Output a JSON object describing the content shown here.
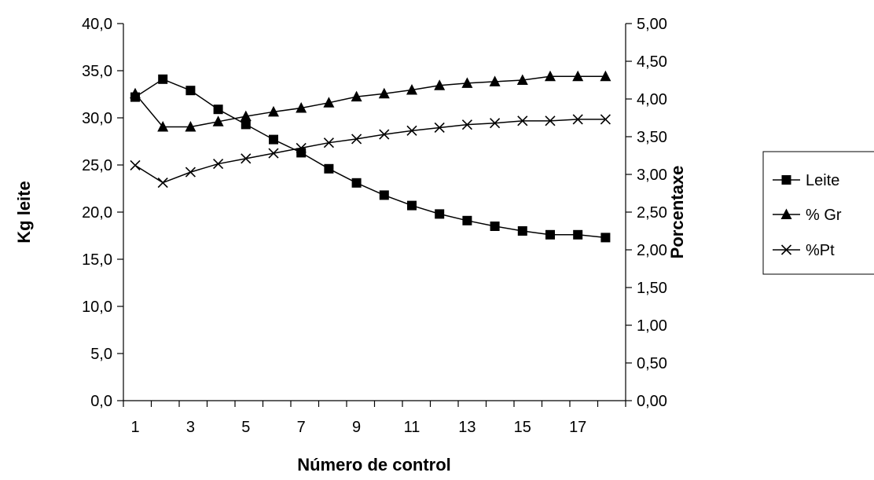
{
  "chart_data": {
    "type": "line",
    "title": "",
    "xlabel": "Número de control",
    "ylabel": "Kg leite",
    "y2label": "Porcentaxe",
    "x": [
      1,
      2,
      3,
      4,
      5,
      6,
      7,
      8,
      9,
      10,
      11,
      12,
      13,
      14,
      15,
      16,
      17,
      18
    ],
    "x_ticks": [
      "1",
      "3",
      "5",
      "7",
      "9",
      "11",
      "13",
      "15",
      "17"
    ],
    "ylim": [
      0,
      40
    ],
    "y_ticks": [
      "0,0",
      "5,0",
      "10,0",
      "15,0",
      "20,0",
      "25,0",
      "30,0",
      "35,0",
      "40,0"
    ],
    "y2lim": [
      0,
      5
    ],
    "y2_ticks": [
      "0,00",
      "0,50",
      "1,00",
      "1,50",
      "2,00",
      "2,50",
      "3,00",
      "3,50",
      "4,00",
      "4,50",
      "5,00"
    ],
    "grid": false,
    "legend_position": "right",
    "series": [
      {
        "name": "Leite",
        "axis": "left",
        "marker": "square",
        "values": [
          32.2,
          34.1,
          32.9,
          30.9,
          29.3,
          27.7,
          26.3,
          24.6,
          23.1,
          21.8,
          20.7,
          19.8,
          19.1,
          18.5,
          18.0,
          17.6,
          17.6,
          17.3
        ]
      },
      {
        "name": "% Gr",
        "axis": "right",
        "marker": "triangle",
        "values": [
          4.07,
          3.63,
          3.63,
          3.7,
          3.77,
          3.83,
          3.88,
          3.95,
          4.03,
          4.07,
          4.12,
          4.18,
          4.21,
          4.23,
          4.25,
          4.3,
          4.3,
          4.3
        ]
      },
      {
        "name": "%Pt",
        "axis": "right",
        "marker": "x",
        "values": [
          3.12,
          2.89,
          3.03,
          3.14,
          3.21,
          3.28,
          3.35,
          3.42,
          3.47,
          3.53,
          3.58,
          3.62,
          3.66,
          3.68,
          3.71,
          3.71,
          3.73,
          3.73
        ]
      }
    ]
  }
}
